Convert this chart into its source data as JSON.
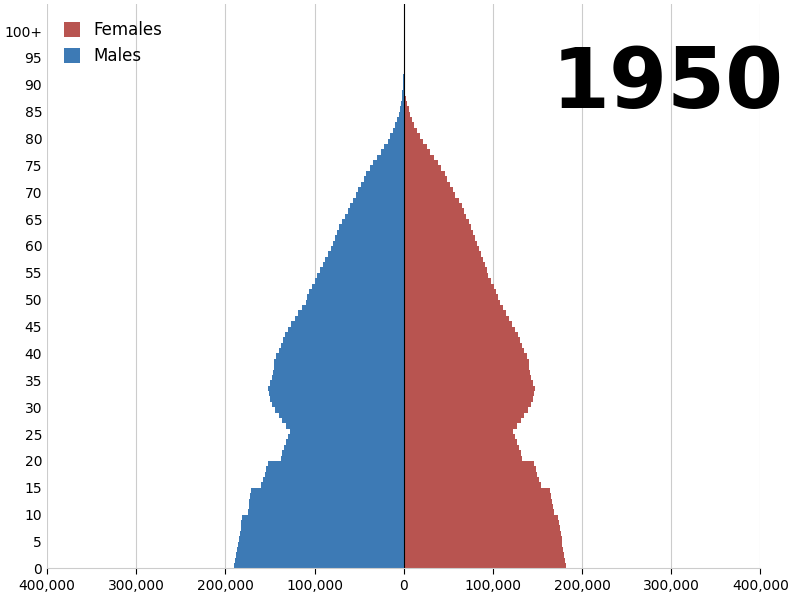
{
  "year": "1950",
  "male_color": "#3d7ab5",
  "female_color": "#b85450",
  "background_color": "#ffffff",
  "grid_color": "#cccccc",
  "xlim": 400000,
  "year_fontsize": 60,
  "legend_fontsize": 12,
  "tick_fontsize": 10,
  "ytick_fontsize": 10,
  "males_by_age": [
    190000,
    189000,
    188000,
    187000,
    186000,
    185000,
    184000,
    183000,
    182000,
    181000,
    175000,
    174000,
    173000,
    172000,
    171000,
    160000,
    158000,
    156000,
    154000,
    152000,
    138000,
    136000,
    134000,
    132000,
    130000,
    128000,
    132000,
    136000,
    140000,
    144000,
    148000,
    150000,
    151000,
    152000,
    150000,
    148000,
    147000,
    146000,
    145000,
    143000,
    140000,
    138000,
    135000,
    133000,
    130000,
    126000,
    122000,
    118000,
    114000,
    110000,
    108000,
    106000,
    103000,
    100000,
    97000,
    94000,
    91000,
    88000,
    85000,
    82000,
    79000,
    77000,
    75000,
    72000,
    69000,
    66000,
    63000,
    60000,
    57000,
    54000,
    51000,
    48000,
    45000,
    42000,
    38000,
    34000,
    30000,
    26000,
    22000,
    18000,
    15000,
    12000,
    9500,
    7500,
    5800,
    4200,
    3000,
    2100,
    1400,
    900,
    550,
    320,
    180,
    90,
    40,
    15,
    5,
    2,
    1,
    0,
    0
  ],
  "females_by_age": [
    182000,
    181000,
    180000,
    179000,
    178000,
    177000,
    176000,
    175000,
    174000,
    173000,
    168000,
    167000,
    166000,
    165000,
    164000,
    154000,
    152000,
    150000,
    148000,
    146000,
    133000,
    131000,
    129000,
    127000,
    125000,
    123000,
    127000,
    131000,
    135000,
    139000,
    143000,
    145000,
    146000,
    147000,
    145000,
    143000,
    142000,
    141000,
    140000,
    138000,
    135000,
    133000,
    130000,
    128000,
    125000,
    122000,
    118000,
    115000,
    111000,
    108000,
    106000,
    104000,
    101000,
    98000,
    95000,
    93000,
    91000,
    89000,
    87000,
    85000,
    82000,
    80000,
    78000,
    76000,
    73000,
    70000,
    68000,
    65000,
    62000,
    58000,
    55000,
    52000,
    49000,
    46000,
    42000,
    38000,
    34000,
    30000,
    26000,
    22000,
    18000,
    15000,
    12000,
    9500,
    7500,
    5500,
    4000,
    2800,
    1900,
    1200,
    700,
    400,
    210,
    100,
    45,
    18,
    7,
    2,
    1,
    0,
    0
  ]
}
